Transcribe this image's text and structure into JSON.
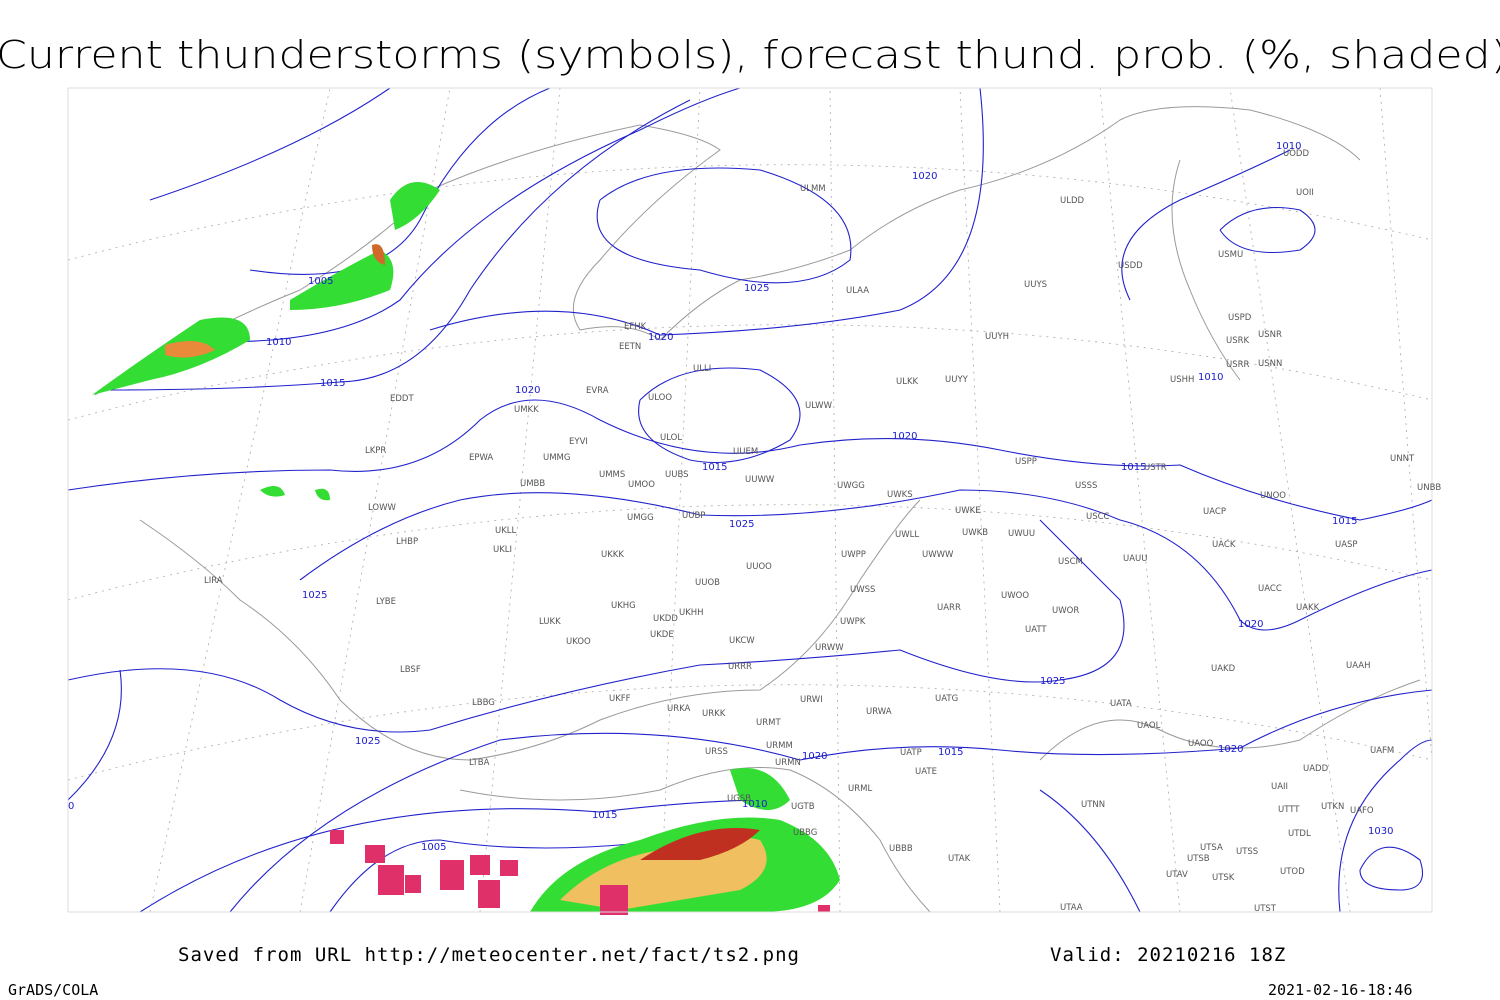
{
  "header": {
    "title": "Current thunderstorms (symbols), forecast thund. prob. (%, shaded)"
  },
  "footer": {
    "source": "Saved from URL http://meteocenter.net/fact/ts2.png",
    "valid": "Valid: 20210216 18Z",
    "software": "GrADS/COLA",
    "timestamp": "2021-02-16-18:46"
  },
  "isobar_labels": [
    1010,
    1020,
    1005,
    1025,
    1010,
    1020,
    1015,
    1020,
    1010,
    1020,
    1015,
    1015,
    1025,
    1015,
    1025,
    1020,
    1025,
    1025,
    1020,
    1020,
    1015,
    1015,
    1010,
    1005,
    1030,
    0
  ],
  "stations": [
    "UODD",
    "UOII",
    "ULDD",
    "ULMM",
    "USDD",
    "USMU",
    "ULAA",
    "UUYS",
    "USPD",
    "USNR",
    "USRK",
    "UUYH",
    "USRR",
    "USNN",
    "USHH",
    "EFHK",
    "EETN",
    "ULLI",
    "UUYY",
    "ULKK",
    "EVRA",
    "ULOO",
    "UMKK",
    "ULWW",
    "EDDT",
    "ULOL",
    "EYVI",
    "UUEM",
    "LKPR",
    "EPWA",
    "UMMG",
    "USPP",
    "USTR",
    "UNNT",
    "UMMS",
    "UMOO",
    "UUBS",
    "UUWW",
    "UWGG",
    "UWKS",
    "USSS",
    "UNOO",
    "UNBB",
    "UMBB",
    "LOWW",
    "UWKE",
    "UWKB",
    "UWUU",
    "UACP",
    "USCC",
    "UMGG",
    "UUBP",
    "UKLL",
    "UWLL",
    "LHBP",
    "UKLI",
    "UKKK",
    "UWPP",
    "UWWW",
    "USCM",
    "UAUU",
    "UACK",
    "UASP",
    "UUOO",
    "LIRA",
    "UUOB",
    "UACC",
    "LYBE",
    "UWSS",
    "UARR",
    "UWOO",
    "UWOR",
    "UAKK",
    "LUKK",
    "UKHG",
    "UKDD",
    "UKHH",
    "UWPK",
    "UATT",
    "UKOO",
    "UKDE",
    "UKCW",
    "URWW",
    "UAAH",
    "LBSF",
    "URRR",
    "UAKD",
    "UKFF",
    "UATG",
    "URWI",
    "LBBG",
    "UATA",
    "URKA",
    "URKK",
    "URWA",
    "URMT",
    "UAOL",
    "URMM",
    "UAOO",
    "URSS",
    "UATP",
    "UAFM",
    "URMN",
    "LTBA",
    "UATE",
    "UADD",
    "UGSB",
    "URML",
    "UAII",
    "UTNN",
    "UTTT",
    "UTKN",
    "UAFO",
    "UGTB",
    "UTDL",
    "UBBG",
    "UBBB",
    "UTAK",
    "UTSA",
    "UTSS",
    "UTSB",
    "UTAV",
    "UTSK",
    "UTOD",
    "UTAA",
    "UTST"
  ]
}
